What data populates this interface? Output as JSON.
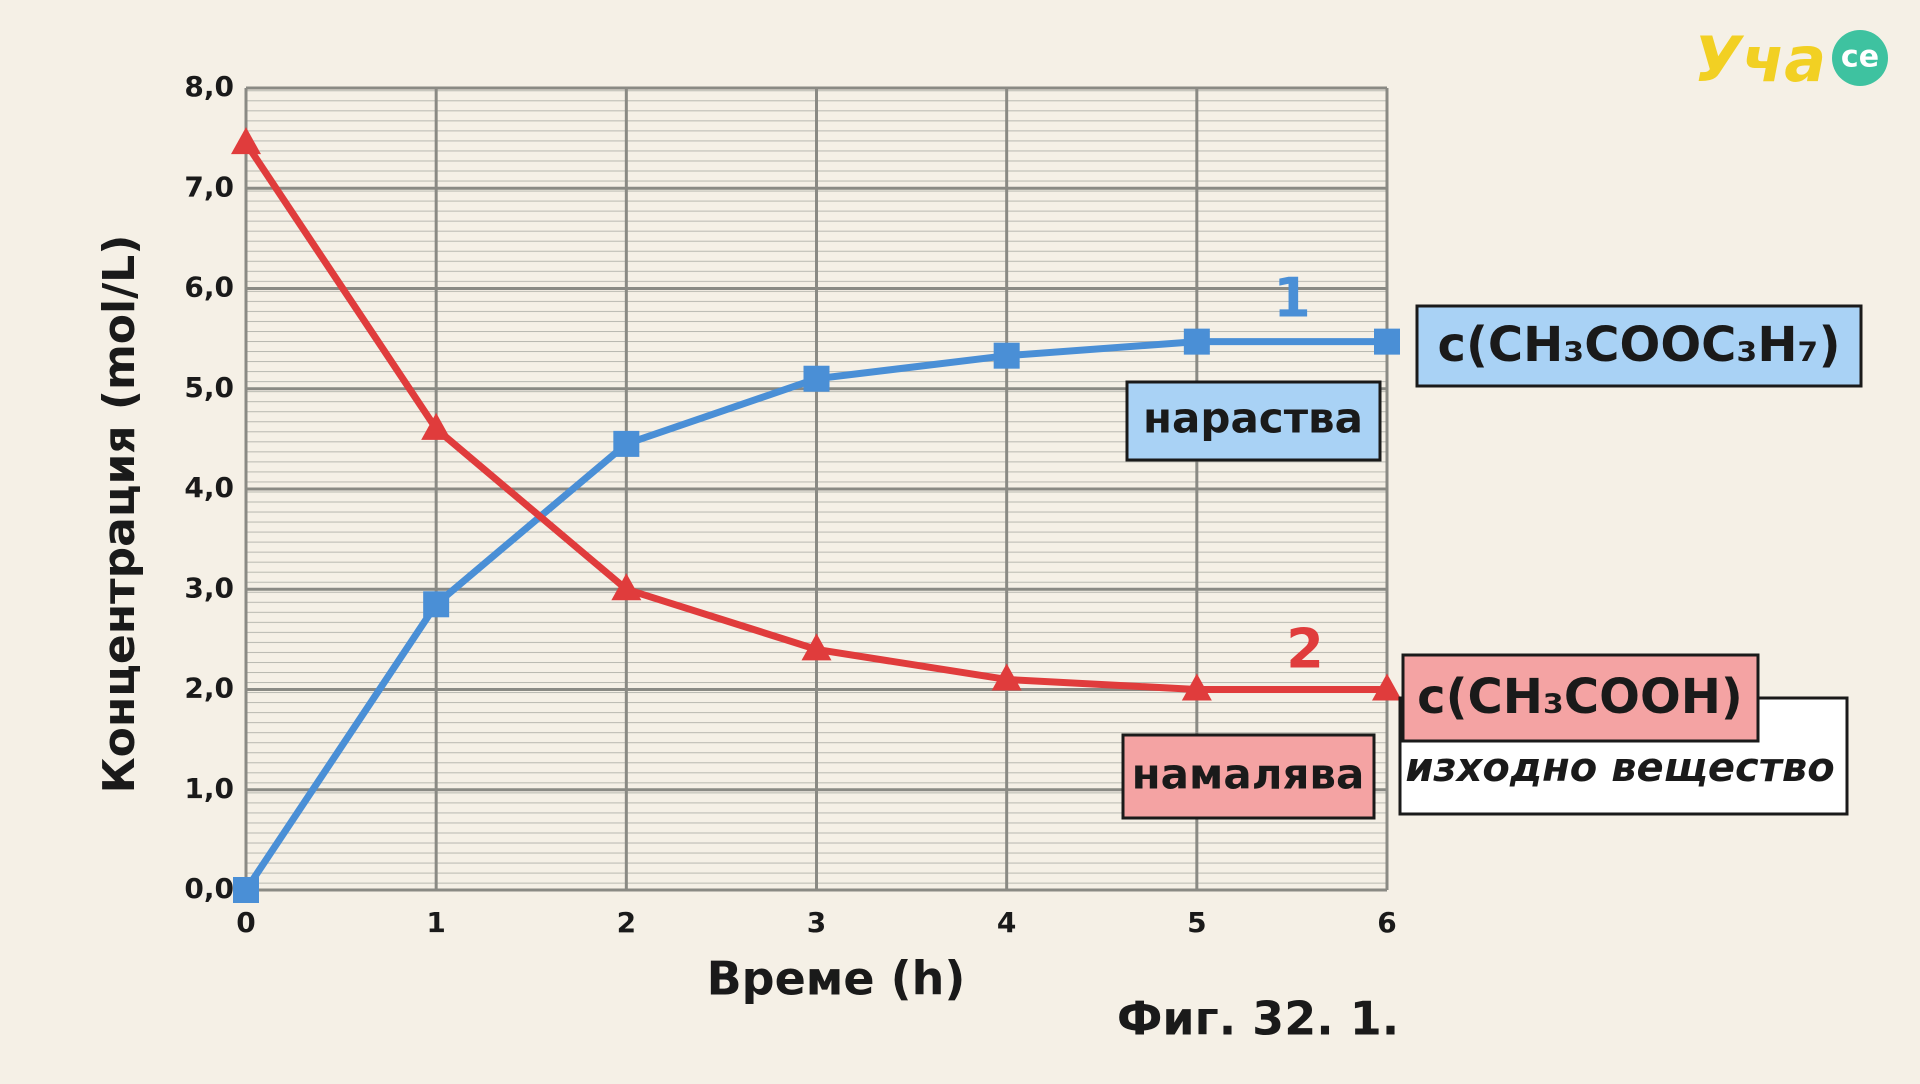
{
  "chart_data": {
    "type": "line",
    "x": [
      0,
      1,
      2,
      3,
      4,
      5,
      6
    ],
    "series": [
      {
        "name": "c(CH₃COOC₃H₇)",
        "color": "#4a8fd6",
        "marker": "square",
        "values": [
          0,
          2.85,
          4.45,
          5.1,
          5.33,
          5.47,
          5.47
        ]
      },
      {
        "name": "c(CH₃COOH)",
        "color": "#e03c3c",
        "marker": "triangle",
        "values": [
          7.45,
          4.6,
          3.0,
          2.4,
          2.1,
          2.0,
          2.0
        ]
      }
    ],
    "xlim": [
      0,
      6
    ],
    "xticks": [
      0,
      1,
      2,
      3,
      4,
      5,
      6
    ],
    "ylim": [
      0,
      8
    ],
    "yticks": [
      {
        "value": 0,
        "label": "0,0"
      },
      {
        "value": 1,
        "label": "1,0"
      },
      {
        "value": 2,
        "label": "2,0"
      },
      {
        "value": 3,
        "label": "3,0"
      },
      {
        "value": 4,
        "label": "4,0"
      },
      {
        "value": 5,
        "label": "5,0"
      },
      {
        "value": 6,
        "label": "6,0"
      },
      {
        "value": 7,
        "label": "7,0"
      },
      {
        "value": 8,
        "label": "8,0"
      }
    ],
    "grid": true,
    "xlabel": "Време (h)",
    "ylabel": "Концентрация (mol/L)",
    "annotations": [
      "1",
      "нараства",
      "2",
      "намалява",
      "изходно вещество"
    ],
    "caption": "Фиг. 32. 1."
  },
  "logo": {
    "main": "Уча",
    "badge": "се"
  }
}
